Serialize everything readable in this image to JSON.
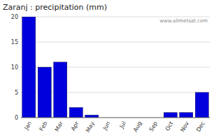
{
  "chart_data": {
    "type": "bar",
    "title": "Zaranj : precipitation (mm)",
    "categories": [
      "Jan",
      "Feb",
      "Mar",
      "Apr",
      "May",
      "Jun",
      "Jul",
      "Aug",
      "Sep",
      "Oct",
      "Nov",
      "Dec"
    ],
    "values": [
      20,
      10,
      11,
      2,
      0.5,
      0,
      0,
      0,
      0,
      1,
      1,
      5
    ],
    "color": "#0000dd",
    "ylim": [
      0,
      20
    ],
    "yticks": [
      0,
      5,
      10,
      15,
      20
    ],
    "grid": true,
    "annotations": [
      "www.allmetsat.com"
    ]
  }
}
